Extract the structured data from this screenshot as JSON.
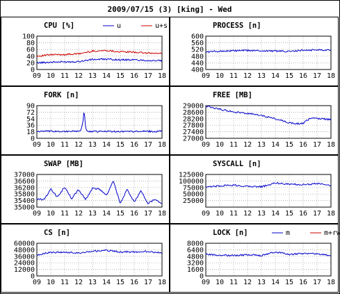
{
  "header": {
    "title": "2009/07/15 (3) [king] - Wed"
  },
  "x_ticks": [
    "09",
    "10",
    "11",
    "12",
    "13",
    "14",
    "15",
    "16",
    "17",
    "18"
  ],
  "colors": {
    "blue": "#0000cc",
    "red": "#cc0000",
    "grid": "#999999",
    "frame": "#000000"
  },
  "chart_data": [
    {
      "id": "cpu",
      "type": "line",
      "title": "CPU [%]",
      "xlim": [
        9,
        18
      ],
      "ylim": [
        0,
        100
      ],
      "yticks": [
        0,
        20,
        40,
        60,
        80,
        100
      ],
      "series": [
        {
          "name": "u",
          "color": "#0000cc",
          "x": [
            9,
            10,
            11,
            12,
            13,
            14,
            15,
            16,
            17,
            18
          ],
          "values": [
            20,
            22,
            23,
            24,
            30,
            31,
            29,
            29,
            27,
            26
          ]
        },
        {
          "name": "u+s",
          "color": "#cc0000",
          "x": [
            9,
            10,
            11,
            12,
            13,
            14,
            15,
            16,
            17,
            18
          ],
          "values": [
            40,
            44,
            45,
            47,
            55,
            57,
            53,
            52,
            49,
            48
          ]
        }
      ]
    },
    {
      "id": "process",
      "type": "line",
      "title": "PROCESS [n]",
      "xlim": [
        9,
        18
      ],
      "ylim": [
        400,
        600
      ],
      "yticks": [
        400,
        440,
        480,
        520,
        560,
        600
      ],
      "series": [
        {
          "name": "",
          "color": "#0000cc",
          "x": [
            9,
            10,
            11,
            12,
            13,
            14,
            15,
            16,
            17,
            18
          ],
          "values": [
            505,
            510,
            512,
            514,
            512,
            511,
            508,
            515,
            518,
            518
          ]
        }
      ]
    },
    {
      "id": "fork",
      "type": "line",
      "title": "FORK [n]",
      "xlim": [
        9,
        18
      ],
      "ylim": [
        0,
        90
      ],
      "yticks": [
        0,
        18,
        36,
        54,
        72,
        90
      ],
      "series": [
        {
          "name": "",
          "color": "#0000cc",
          "x": [
            9,
            10,
            11,
            12,
            12.2,
            12.3,
            12.4,
            12.5,
            12.6,
            13,
            14,
            15,
            16,
            17,
            18
          ],
          "values": [
            19,
            19,
            19,
            19,
            25,
            40,
            82,
            30,
            19,
            19,
            19,
            19,
            19,
            19,
            19
          ]
        }
      ]
    },
    {
      "id": "free",
      "type": "line",
      "title": "FREE [MB]",
      "xlim": [
        9,
        18
      ],
      "ylim": [
        27000,
        29000
      ],
      "yticks": [
        27000,
        27400,
        27800,
        28200,
        28600,
        29000
      ],
      "series": [
        {
          "name": "",
          "color": "#0000cc",
          "x": [
            9,
            10,
            11,
            12,
            13,
            14,
            15,
            15.5,
            16,
            16.5,
            17,
            18
          ],
          "values": [
            28980,
            28780,
            28620,
            28520,
            28400,
            28200,
            27950,
            27900,
            27920,
            28230,
            28220,
            28150
          ]
        }
      ]
    },
    {
      "id": "swap",
      "type": "line",
      "title": "SWAP [MB]",
      "xlim": [
        9,
        18
      ],
      "ylim": [
        35000,
        37000
      ],
      "yticks": [
        35000,
        35400,
        35800,
        36200,
        36600,
        37000
      ],
      "series": [
        {
          "name": "",
          "color": "#0000cc",
          "x": [
            9,
            9.5,
            10,
            10.5,
            11,
            11.5,
            12,
            12.5,
            13,
            13.5,
            14,
            14.5,
            15,
            15.5,
            16,
            16.5,
            17,
            17.5,
            18
          ],
          "values": [
            35500,
            35450,
            36100,
            35600,
            36250,
            35500,
            36100,
            35450,
            36150,
            36100,
            35700,
            36600,
            35200,
            36100,
            35300,
            36000,
            35200,
            35500,
            35150
          ]
        }
      ]
    },
    {
      "id": "syscall",
      "type": "line",
      "title": "SYSCALL [n]",
      "xlim": [
        9,
        18
      ],
      "ylim": [
        0,
        125000
      ],
      "yticks": [
        25000,
        50000,
        75000,
        100000,
        125000
      ],
      "series": [
        {
          "name": "",
          "color": "#0000cc",
          "x": [
            9,
            10,
            11,
            12,
            13,
            14,
            15,
            16,
            17,
            18
          ],
          "values": [
            75000,
            82000,
            84000,
            80000,
            78000,
            92000,
            88000,
            86000,
            90000,
            82000
          ]
        }
      ]
    },
    {
      "id": "cs",
      "type": "line",
      "title": "CS [n]",
      "xlim": [
        9,
        18
      ],
      "ylim": [
        0,
        60000
      ],
      "yticks": [
        0,
        12000,
        24000,
        36000,
        48000,
        60000
      ],
      "series": [
        {
          "name": "",
          "color": "#0000cc",
          "x": [
            9,
            10,
            11,
            12,
            13,
            14,
            15,
            16,
            17,
            18
          ],
          "values": [
            39000,
            43000,
            44000,
            42000,
            45000,
            47000,
            44000,
            44000,
            45000,
            42000
          ]
        }
      ]
    },
    {
      "id": "lock",
      "type": "line",
      "title": "LOCK [n]",
      "xlim": [
        9,
        18
      ],
      "ylim": [
        0,
        8000
      ],
      "yticks": [
        0,
        1600,
        3200,
        4800,
        6400,
        8000
      ],
      "series": [
        {
          "name": "m",
          "color": "#0000cc",
          "x": [
            9,
            10,
            11,
            12,
            13,
            14,
            15,
            16,
            17,
            18
          ],
          "values": [
            5300,
            5100,
            5000,
            5200,
            5000,
            5900,
            5300,
            5500,
            5400,
            5000
          ]
        },
        {
          "name": "m+rw",
          "color": "#cc0000",
          "x": [],
          "values": []
        }
      ]
    }
  ]
}
